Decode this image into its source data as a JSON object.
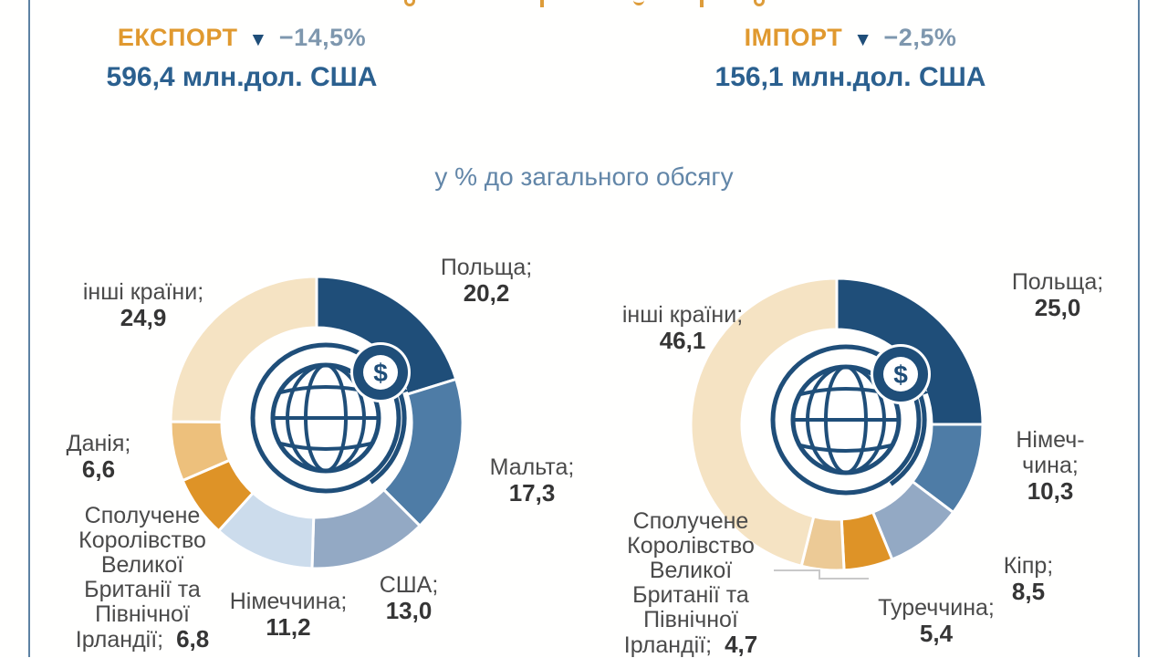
{
  "page": {
    "frame_color": "#5d82a3",
    "background": "#fffffe"
  },
  "header": {
    "export": {
      "title": "ЕКСПОРТ",
      "direction_icon": "▼",
      "change": "−14,5%",
      "amount": "596,4 млн.дол. США"
    },
    "import": {
      "title": "ІМПОРТ",
      "direction_icon": "▼",
      "change": "−2,5%",
      "amount": "156,1 млн.дол. США"
    },
    "subtitle": "у % до загального обсягу"
  },
  "icons": {
    "dollar": "$",
    "decrease_triangle": "▼",
    "center_icon": "globe-with-dollar-and-circular-arrow"
  },
  "colors": {
    "dark_blue": "#1f4e79",
    "steel_blue": "#4e7ca6",
    "gray_blue": "#93a9c4",
    "pale_blue": "#ccdcec",
    "amber": "#de9327",
    "light_orange": "#edc07c",
    "tan": "#ecca96",
    "cream": "#f5e3c3",
    "header_orange": "#e0992f",
    "change_slate": "#7e97ae",
    "amount_blue": "#2b608f",
    "subtitle_blue": "#6286a8",
    "label_gray": "#4a4a4a",
    "leader_line": "#c9c9c9"
  },
  "chart_data": [
    {
      "type": "pie",
      "variant": "donut",
      "name": "ЕКСПОРТ",
      "units": "у % до загального обсягу",
      "total_label": "596,4 млн.дол. США",
      "change_label": "−14,5%",
      "start_angle_deg": -90,
      "direction": "clockwise",
      "legend": "none (labels around chart)",
      "slices": [
        {
          "label": "Польща;",
          "value": 20.2,
          "value_label": "20,2",
          "color": "#1f4e79"
        },
        {
          "label": "Мальта;",
          "value": 17.3,
          "value_label": "17,3",
          "color": "#4e7ca6"
        },
        {
          "label": "США;",
          "value": 13.0,
          "value_label": "13,0",
          "color": "#93a9c4"
        },
        {
          "label": "Німеччина;",
          "value": 11.2,
          "value_label": "11,2",
          "color": "#ccdcec"
        },
        {
          "label": "Сполучене Королівство Великої Британії та Північної Ірландії;",
          "value": 6.8,
          "value_label": "6,8",
          "color": "#de9327"
        },
        {
          "label": "Данія;",
          "value": 6.6,
          "value_label": "6,6",
          "color": "#edc07c"
        },
        {
          "label": "інші країни;",
          "value": 24.9,
          "value_label": "24,9",
          "color": "#f5e3c3"
        }
      ]
    },
    {
      "type": "pie",
      "variant": "donut",
      "name": "ІМПОРТ",
      "units": "у % до загального обсягу",
      "total_label": "156,1 млн.дол. США",
      "change_label": "−2,5%",
      "start_angle_deg": -90,
      "direction": "clockwise",
      "legend": "none (labels around chart, one leader line)",
      "slices": [
        {
          "label": "Польща;",
          "value": 25.0,
          "value_label": "25,0",
          "color": "#1f4e79"
        },
        {
          "label": "Німеч-чина;",
          "value": 10.3,
          "value_label": "10,3",
          "color": "#4e7ca6"
        },
        {
          "label": "Кіпр;",
          "value": 8.5,
          "value_label": "8,5",
          "color": "#93a9c4"
        },
        {
          "label": "Туреччина;",
          "value": 5.4,
          "value_label": "5,4",
          "color": "#de9327"
        },
        {
          "label": "Сполучене Королівство Великої Британії та Північної Ірландії;",
          "value": 4.7,
          "value_label": "4,7",
          "color": "#ecca96"
        },
        {
          "label": "інші країни;",
          "value": 46.1,
          "value_label": "46,1",
          "color": "#f5e3c3"
        }
      ]
    }
  ]
}
